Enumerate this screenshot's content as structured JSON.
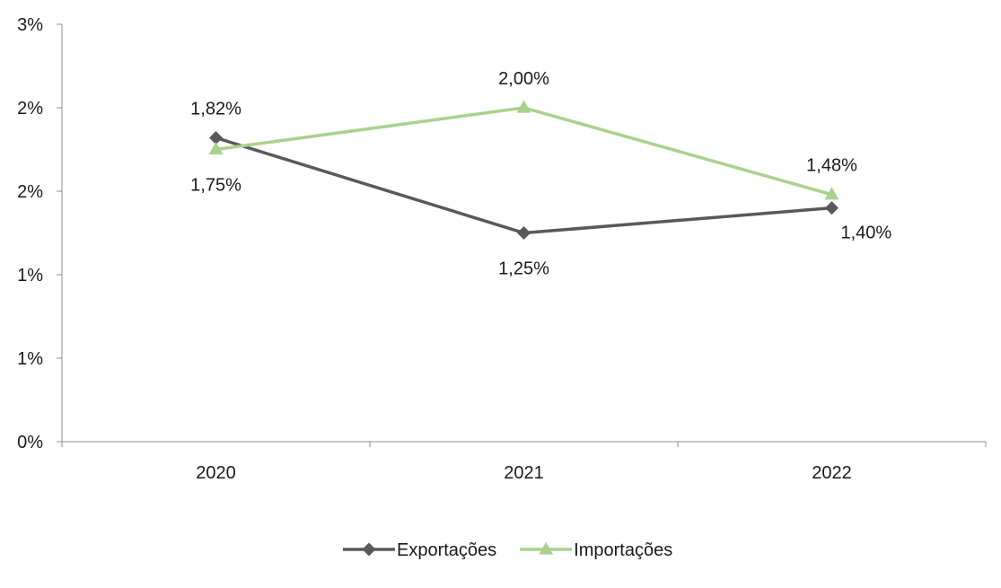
{
  "chart_data": {
    "type": "line",
    "categories": [
      "2020",
      "2021",
      "2022"
    ],
    "ylim": [
      0,
      2.5
    ],
    "y_ticks": [
      {
        "value": 0,
        "label": "0%"
      },
      {
        "value": 0.5,
        "label": "1%"
      },
      {
        "value": 1.0,
        "label": "1%"
      },
      {
        "value": 1.5,
        "label": "2%"
      },
      {
        "value": 2.0,
        "label": "2%"
      },
      {
        "value": 2.5,
        "label": "3%"
      }
    ],
    "grid": false,
    "legend_position": "bottom",
    "series": [
      {
        "name": "Exportações",
        "values": [
          1.82,
          1.25,
          1.4
        ],
        "labels": [
          "1,82%",
          "1,25%",
          "1,40%"
        ],
        "color": "#595959",
        "marker": "diamond"
      },
      {
        "name": "Importações",
        "values": [
          1.75,
          2.0,
          1.48
        ],
        "labels": [
          "1,75%",
          "2,00%",
          "1,48%"
        ],
        "color": "#a9d18e",
        "marker": "triangle"
      }
    ]
  }
}
